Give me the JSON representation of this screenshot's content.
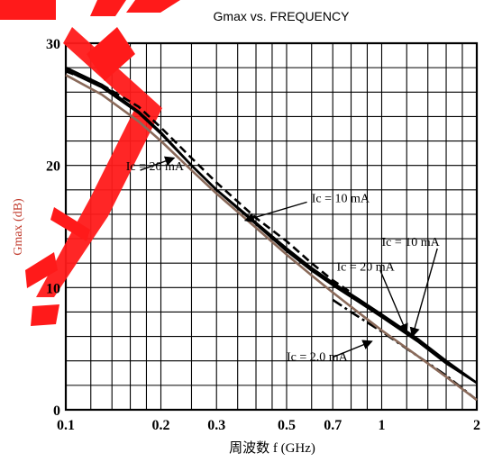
{
  "chart_data": {
    "type": "line",
    "title": "Gmax vs. FREQUENCY",
    "xlabel": "周波数  f (GHz)",
    "ylabel": "Gmax (dB)",
    "x_scale": "log",
    "xlim": [
      0.1,
      2
    ],
    "ylim": [
      0,
      30
    ],
    "grid": true,
    "x_ticks": [
      0.1,
      0.2,
      0.3,
      0.5,
      0.7,
      1,
      2
    ],
    "x_tick_labels": [
      "0.1",
      "0.2",
      "0.3",
      "0.5",
      "0.7",
      "1",
      "2"
    ],
    "y_ticks": [
      0,
      10,
      20,
      30
    ],
    "y_tick_labels": [
      "0",
      "10",
      "20",
      "30"
    ],
    "series": [
      {
        "line_color": "#000000",
        "dash": "solid",
        "x": [
          0.1,
          0.13,
          0.17,
          0.2,
          0.25,
          0.3,
          0.4,
          0.5,
          0.6,
          0.7,
          0.85,
          1.0,
          1.3,
          1.6,
          2.0
        ],
        "y": [
          28.0,
          26.6,
          24.4,
          22.7,
          20.0,
          18.0,
          15.3,
          13.2,
          11.6,
          10.4,
          9.0,
          7.8,
          5.8,
          4.0,
          2.2
        ]
      },
      {
        "line_color": "#000000",
        "dash": "solid",
        "x": [
          0.1,
          0.13,
          0.17,
          0.2,
          0.25,
          0.3,
          0.4,
          0.5,
          0.6,
          0.7,
          0.85,
          1.0,
          1.3,
          1.6,
          2.0
        ],
        "y": [
          27.8,
          26.4,
          24.3,
          22.6,
          20.0,
          18.0,
          15.2,
          13.0,
          11.4,
          10.2,
          8.8,
          7.6,
          5.6,
          3.8,
          2.2
        ]
      },
      {
        "line_color": "#000000",
        "dash": "dashed",
        "x": [
          0.1,
          0.13,
          0.17,
          0.2,
          0.25,
          0.3,
          0.4,
          0.5,
          0.6,
          0.7,
          0.8
        ],
        "y": [
          27.7,
          26.6,
          24.8,
          23.1,
          20.6,
          18.6,
          15.7,
          13.8,
          12.0,
          10.6,
          9.6
        ]
      },
      {
        "line_color": "#000000",
        "dash": "dashdot",
        "x": [
          0.7,
          0.8,
          1.0,
          1.3,
          1.6,
          2.0
        ],
        "y": [
          9.0,
          8.0,
          6.4,
          4.4,
          2.8,
          0.8
        ]
      },
      {
        "line_color": "#8a6a5a",
        "dash": "solid",
        "x": [
          0.1,
          0.13,
          0.17,
          0.2,
          0.25,
          0.3,
          0.4,
          0.5,
          0.6,
          0.7,
          0.85,
          1.0,
          1.3,
          1.6,
          2.0
        ],
        "y": [
          27.4,
          25.8,
          23.6,
          22.0,
          19.6,
          17.7,
          14.9,
          12.7,
          11.0,
          9.6,
          7.9,
          6.5,
          4.4,
          2.7,
          0.8
        ]
      }
    ],
    "annotations": [
      {
        "text": "Ic = 20 mA",
        "x": 0.155,
        "y": 19.6
      },
      {
        "text": "Ic = 10 mA",
        "x": 0.6,
        "y": 17.0
      },
      {
        "text": "Ic = 10 mA",
        "x": 1.0,
        "y": 13.4
      },
      {
        "text": "Ic = 20 mA",
        "x": 0.72,
        "y": 11.4
      },
      {
        "text": "Ic = 2.0 mA",
        "x": 0.5,
        "y": 4.0
      }
    ],
    "arrows": [
      {
        "from": [
          0.172,
          19.6
        ],
        "to": [
          0.22,
          20.6
        ]
      },
      {
        "from": [
          0.58,
          17.0
        ],
        "to": [
          0.37,
          15.5
        ]
      },
      {
        "from": [
          1.5,
          13.2
        ],
        "to": [
          1.25,
          6.0
        ]
      },
      {
        "from": [
          0.99,
          11.4
        ],
        "to": [
          1.2,
          6.3
        ]
      },
      {
        "from": [
          0.7,
          4.3
        ],
        "to": [
          0.93,
          5.6
        ]
      }
    ],
    "overlay_color": "#ff1a1a"
  }
}
